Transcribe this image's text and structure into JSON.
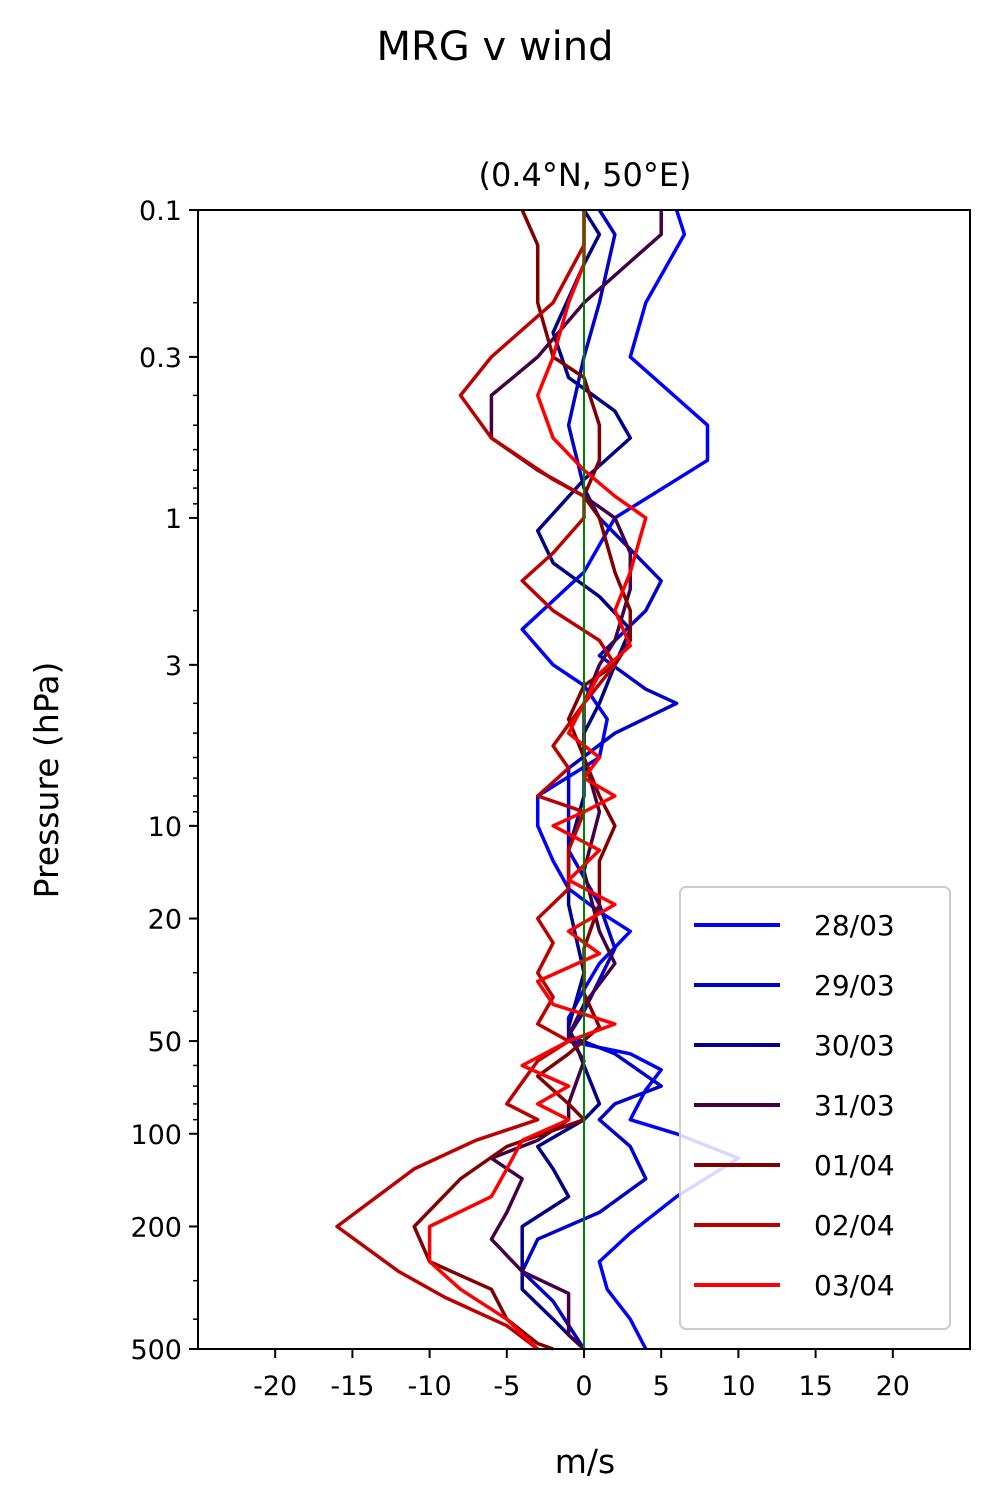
{
  "figure": {
    "suptitle": "MRG v wind"
  },
  "chart_data": {
    "type": "line",
    "title": "(0.4°N, 50°E)",
    "xlabel": "m/s",
    "ylabel": "Pressure (hPa)",
    "xlim": [
      -25,
      25
    ],
    "ylim": [
      500,
      0.1
    ],
    "yscale": "log",
    "xticks": [
      -20,
      -15,
      -10,
      -5,
      0,
      5,
      10,
      15,
      20
    ],
    "xtick_labels": [
      "-20",
      "-15",
      "-10",
      "-5",
      "0",
      "5",
      "10",
      "15",
      "20"
    ],
    "yticks": [
      0.1,
      0.3,
      1,
      3,
      10,
      20,
      50,
      100,
      200,
      500
    ],
    "ytick_labels": [
      "0.1",
      "0.3",
      "1",
      "3",
      "10",
      "20",
      "50",
      "100",
      "200",
      "500"
    ],
    "reference_line": {
      "x": 0,
      "color": "#008000"
    },
    "legend_position": "lower-right",
    "series": [
      {
        "name": "28/03",
        "color": "#0000ff",
        "points": [
          [
            6,
            0.1
          ],
          [
            6.5,
            0.12
          ],
          [
            4,
            0.2
          ],
          [
            3,
            0.3
          ],
          [
            8,
            0.5
          ],
          [
            8,
            0.65
          ],
          [
            2,
            1
          ],
          [
            0,
            1.5
          ],
          [
            -4,
            2.3
          ],
          [
            -2,
            3
          ],
          [
            0,
            3.5
          ],
          [
            1.5,
            4.5
          ],
          [
            1,
            6
          ],
          [
            -3,
            8
          ],
          [
            -3,
            10
          ],
          [
            -2,
            13
          ],
          [
            -1,
            16
          ],
          [
            1,
            19
          ],
          [
            3,
            22
          ],
          [
            1,
            28
          ],
          [
            0,
            34
          ],
          [
            -1,
            42
          ],
          [
            -1,
            50
          ],
          [
            3,
            55
          ],
          [
            5,
            62
          ],
          [
            4,
            72
          ],
          [
            3,
            90
          ],
          [
            6,
            100
          ],
          [
            10,
            120
          ],
          [
            6,
            160
          ],
          [
            3,
            210
          ],
          [
            1,
            260
          ],
          [
            1.5,
            320
          ],
          [
            3,
            400
          ],
          [
            4,
            500
          ]
        ]
      },
      {
        "name": "29/03",
        "color": "#0000cc",
        "points": [
          [
            1,
            0.1
          ],
          [
            2,
            0.12
          ],
          [
            1,
            0.2
          ],
          [
            0,
            0.3
          ],
          [
            -1,
            0.5
          ],
          [
            0,
            0.8
          ],
          [
            1,
            1
          ],
          [
            5,
            1.6
          ],
          [
            4,
            2
          ],
          [
            1,
            2.8
          ],
          [
            4,
            3.6
          ],
          [
            6,
            4
          ],
          [
            2,
            5
          ],
          [
            -1,
            6.5
          ],
          [
            -1,
            8
          ],
          [
            -1,
            12
          ],
          [
            1,
            18
          ],
          [
            2,
            25
          ],
          [
            0,
            40
          ],
          [
            -1,
            48
          ],
          [
            2,
            55
          ],
          [
            5,
            70
          ],
          [
            2,
            80
          ],
          [
            1,
            90
          ],
          [
            3,
            110
          ],
          [
            4,
            140
          ],
          [
            1,
            180
          ],
          [
            -3,
            220
          ],
          [
            -4,
            280
          ],
          [
            -2,
            350
          ],
          [
            0,
            500
          ]
        ]
      },
      {
        "name": "30/03",
        "color": "#000088",
        "points": [
          [
            0,
            0.1
          ],
          [
            1,
            0.12
          ],
          [
            0,
            0.15
          ],
          [
            -2,
            0.25
          ],
          [
            -1,
            0.35
          ],
          [
            2,
            0.45
          ],
          [
            3,
            0.55
          ],
          [
            0,
            0.75
          ],
          [
            -3,
            1.1
          ],
          [
            -2,
            1.4
          ],
          [
            1,
            1.8
          ],
          [
            3,
            2.3
          ],
          [
            2,
            3
          ],
          [
            1,
            4
          ],
          [
            0,
            5
          ],
          [
            0,
            8
          ],
          [
            -1,
            12
          ],
          [
            -1,
            18
          ],
          [
            0,
            30
          ],
          [
            -1,
            45
          ],
          [
            0,
            60
          ],
          [
            1,
            80
          ],
          [
            0,
            90
          ],
          [
            -3,
            110
          ],
          [
            -2,
            130
          ],
          [
            -1,
            160
          ],
          [
            -4,
            200
          ],
          [
            -4,
            250
          ],
          [
            -4,
            320
          ],
          [
            -2,
            400
          ],
          [
            -1,
            450
          ],
          [
            0,
            500
          ]
        ]
      },
      {
        "name": "31/03",
        "color": "#440044",
        "points": [
          [
            5,
            0.1
          ],
          [
            5,
            0.12
          ],
          [
            0,
            0.2
          ],
          [
            -3,
            0.3
          ],
          [
            -6,
            0.4
          ],
          [
            -6,
            0.55
          ],
          [
            -3,
            0.7
          ],
          [
            0,
            0.85
          ],
          [
            2,
            1
          ],
          [
            3,
            1.3
          ],
          [
            3,
            1.7
          ],
          [
            2,
            2.5
          ],
          [
            1,
            3
          ],
          [
            0,
            4
          ],
          [
            0,
            6
          ],
          [
            1,
            9
          ],
          [
            0,
            14
          ],
          [
            1,
            22
          ],
          [
            2,
            28
          ],
          [
            0,
            38
          ],
          [
            -1,
            48
          ],
          [
            0,
            58
          ],
          [
            -1,
            80
          ],
          [
            -1,
            90
          ],
          [
            -3,
            105
          ],
          [
            -6,
            120
          ],
          [
            -4,
            140
          ],
          [
            -5,
            180
          ],
          [
            -6,
            220
          ],
          [
            -4,
            280
          ],
          [
            -1,
            330
          ],
          [
            -1,
            400
          ],
          [
            -1,
            450
          ],
          [
            0,
            500
          ]
        ]
      },
      {
        "name": "01/04",
        "color": "#800000",
        "points": [
          [
            -4,
            0.1
          ],
          [
            -3,
            0.13
          ],
          [
            -3,
            0.2
          ],
          [
            -2,
            0.3
          ],
          [
            0,
            0.35
          ],
          [
            1,
            0.5
          ],
          [
            1,
            0.65
          ],
          [
            0,
            0.85
          ],
          [
            1,
            1
          ],
          [
            2,
            1.5
          ],
          [
            3,
            2
          ],
          [
            3,
            2.5
          ],
          [
            2,
            3
          ],
          [
            0,
            3.5
          ],
          [
            -1,
            4.5
          ],
          [
            0,
            6
          ],
          [
            1,
            8
          ],
          [
            2,
            10
          ],
          [
            1,
            13
          ],
          [
            1,
            18
          ],
          [
            0,
            25
          ],
          [
            0,
            35
          ],
          [
            1,
            45
          ],
          [
            -1,
            55
          ],
          [
            -3,
            65
          ],
          [
            -1,
            80
          ],
          [
            0,
            90
          ],
          [
            -5,
            110
          ],
          [
            -8,
            140
          ],
          [
            -11,
            200
          ],
          [
            -10,
            260
          ],
          [
            -6,
            320
          ],
          [
            -5,
            400
          ],
          [
            -3,
            480
          ],
          [
            -2,
            500
          ]
        ]
      },
      {
        "name": "02/04",
        "color": "#bb0000",
        "points": [
          [
            0,
            0.1
          ],
          [
            0,
            0.13
          ],
          [
            -2,
            0.2
          ],
          [
            -6,
            0.3
          ],
          [
            -8,
            0.4
          ],
          [
            -6,
            0.55
          ],
          [
            -2,
            0.75
          ],
          [
            0,
            0.85
          ],
          [
            0,
            1
          ],
          [
            -2,
            1.3
          ],
          [
            -4,
            1.6
          ],
          [
            -2,
            2
          ],
          [
            1,
            2.5
          ],
          [
            2,
            3
          ],
          [
            0,
            4
          ],
          [
            -2,
            5.5
          ],
          [
            -1,
            6.5
          ],
          [
            -3,
            8
          ],
          [
            0,
            9
          ],
          [
            -1,
            12
          ],
          [
            -1,
            16
          ],
          [
            -3,
            20
          ],
          [
            -2,
            24
          ],
          [
            -3,
            30
          ],
          [
            -2,
            36
          ],
          [
            -3,
            44
          ],
          [
            -1,
            50
          ],
          [
            -3,
            58
          ],
          [
            -4,
            68
          ],
          [
            -5,
            80
          ],
          [
            -3,
            90
          ],
          [
            -7,
            105
          ],
          [
            -11,
            130
          ],
          [
            -16,
            200
          ],
          [
            -12,
            280
          ],
          [
            -9,
            340
          ],
          [
            -5,
            420
          ],
          [
            -3,
            500
          ]
        ]
      },
      {
        "name": "03/04",
        "color": "#ff0000",
        "points": [
          [
            0,
            0.1
          ],
          [
            0,
            0.15
          ],
          [
            -1,
            0.2
          ],
          [
            -2,
            0.3
          ],
          [
            -3,
            0.4
          ],
          [
            -2,
            0.55
          ],
          [
            0,
            0.7
          ],
          [
            2,
            0.85
          ],
          [
            4,
            1
          ],
          [
            3,
            1.5
          ],
          [
            2,
            2
          ],
          [
            3,
            2.6
          ],
          [
            1,
            3.2
          ],
          [
            0,
            4
          ],
          [
            -1,
            5
          ],
          [
            1,
            6
          ],
          [
            0,
            7
          ],
          [
            2,
            8
          ],
          [
            0,
            9
          ],
          [
            -2,
            10
          ],
          [
            1,
            12
          ],
          [
            -1,
            15
          ],
          [
            2,
            18
          ],
          [
            -1,
            22
          ],
          [
            1,
            26
          ],
          [
            -3,
            32
          ],
          [
            -2,
            38
          ],
          [
            2,
            44
          ],
          [
            -1,
            50
          ],
          [
            -4,
            60
          ],
          [
            -1,
            70
          ],
          [
            -3,
            80
          ],
          [
            -1,
            90
          ],
          [
            -4,
            105
          ],
          [
            -5,
            130
          ],
          [
            -6,
            160
          ],
          [
            -10,
            200
          ],
          [
            -10,
            260
          ],
          [
            -8,
            320
          ],
          [
            -5,
            400
          ],
          [
            -3,
            500
          ]
        ]
      }
    ]
  }
}
